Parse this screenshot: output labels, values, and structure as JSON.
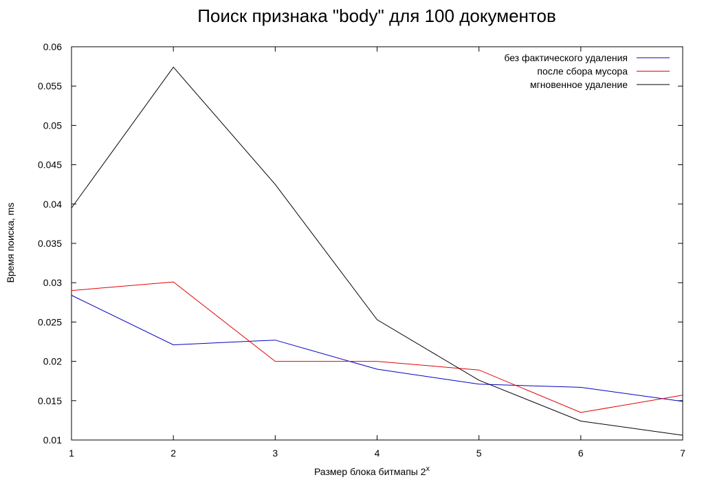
{
  "chart_data": {
    "type": "line",
    "title": "Поиск признака \"body\" для 100 документов",
    "xlabel": "Размер блока битмапы 2",
    "xlabel_superscript": "x",
    "ylabel": "Время поиска, ms",
    "x": [
      1,
      2,
      3,
      4,
      5,
      6,
      7
    ],
    "xlim": [
      1,
      7
    ],
    "ylim": [
      0.01,
      0.06
    ],
    "x_ticks": [
      "1",
      "2",
      "3",
      "4",
      "5",
      "6",
      "7"
    ],
    "y_ticks": [
      "0.01",
      "0.015",
      "0.02",
      "0.025",
      "0.03",
      "0.035",
      "0.04",
      "0.045",
      "0.05",
      "0.055",
      "0.06"
    ],
    "grid": false,
    "legend_position": "top-right",
    "series": [
      {
        "name": "без фактического удаления",
        "color": "#0000c0",
        "values": [
          0.0284,
          0.0221,
          0.0227,
          0.019,
          0.0171,
          0.0167,
          0.0149
        ]
      },
      {
        "name": "после сбора мусора",
        "color": "#e00000",
        "values": [
          0.029,
          0.0301,
          0.02,
          0.02,
          0.0189,
          0.0135,
          0.0157
        ]
      },
      {
        "name": "мгновенное удаление",
        "color": "#000000",
        "values": [
          0.0395,
          0.0574,
          0.0425,
          0.0253,
          0.0176,
          0.0124,
          0.0106
        ]
      }
    ]
  }
}
